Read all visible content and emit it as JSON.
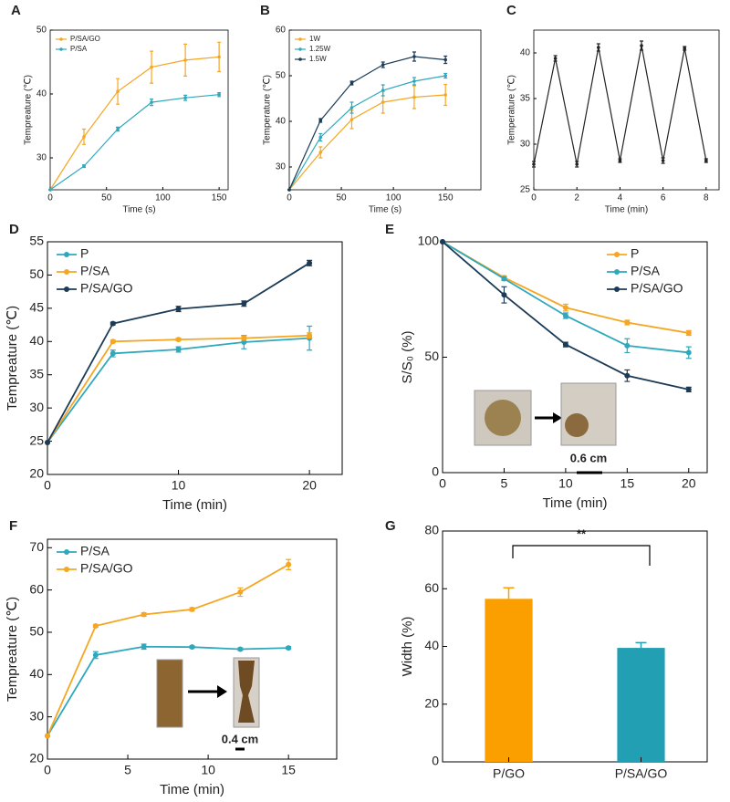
{
  "chart_data": [
    {
      "label": "A",
      "type": "line",
      "xlabel": "Time (s)",
      "ylabel": "Tempreature (℃)",
      "xlim": [
        0,
        158
      ],
      "ylim": [
        25,
        50
      ],
      "xticks": [
        0,
        50,
        100,
        150
      ],
      "yticks": [
        30,
        40,
        50
      ],
      "legend": "upper left",
      "x": [
        0,
        30,
        60,
        90,
        120,
        150
      ],
      "series": [
        {
          "name": "P/SA/GO",
          "color": "#f5a623",
          "values": [
            25,
            33.3,
            40.4,
            44.2,
            45.3,
            45.8
          ],
          "errors": [
            0,
            1.2,
            2,
            2.5,
            2.5,
            2.3
          ]
        },
        {
          "name": "P/SA",
          "color": "#2fa8bd",
          "values": [
            25,
            28.7,
            34.5,
            38.7,
            39.4,
            39.9
          ],
          "errors": [
            0,
            0.2,
            0.3,
            0.5,
            0.4,
            0.3
          ]
        }
      ]
    },
    {
      "label": "B",
      "type": "line",
      "xlabel": "Time (s)",
      "ylabel": "Temperature (℃)",
      "xlim": [
        0,
        184
      ],
      "ylim": [
        25,
        60
      ],
      "xticks": [
        0,
        50,
        100,
        150
      ],
      "yticks": [
        30,
        40,
        50,
        60
      ],
      "legend": "upper left",
      "x": [
        0,
        30,
        60,
        90,
        120,
        150
      ],
      "series": [
        {
          "name": "1W",
          "color": "#f5a623",
          "values": [
            25,
            33.2,
            40.4,
            44.2,
            45.3,
            45.8
          ],
          "errors": [
            0,
            1.2,
            2,
            2.4,
            2.5,
            2.3
          ]
        },
        {
          "name": "1.25W",
          "color": "#2fa8bd",
          "values": [
            25,
            36.5,
            43,
            46.8,
            48.8,
            50
          ],
          "errors": [
            0,
            0.8,
            1.2,
            1.2,
            0.8,
            0.5
          ]
        },
        {
          "name": "1.5W",
          "color": "#1b3b57",
          "values": [
            25,
            40.2,
            48.4,
            52.4,
            54.2,
            53.5
          ],
          "errors": [
            0,
            0.4,
            0.4,
            0.6,
            1,
            0.8
          ]
        }
      ]
    },
    {
      "label": "C",
      "type": "line",
      "xlabel": "Time (min)",
      "ylabel": "Temperature (℃)",
      "xlim": [
        0,
        8.6
      ],
      "ylim": [
        25,
        42.5
      ],
      "xticks": [
        0,
        2,
        4,
        6,
        8
      ],
      "yticks": [
        25,
        30,
        35,
        40
      ],
      "x": [
        0,
        1,
        2,
        3,
        4,
        5,
        6,
        7,
        8
      ],
      "series": [
        {
          "color": "#222222",
          "values": [
            27.8,
            39.4,
            27.8,
            40.6,
            28.2,
            40.8,
            28.2,
            40.5,
            28.2
          ],
          "errors": [
            0.3,
            0.3,
            0.3,
            0.4,
            0.2,
            0.5,
            0.3,
            0.2,
            0.2
          ]
        }
      ]
    },
    {
      "label": "D",
      "type": "line",
      "xlabel": "Time (min)",
      "ylabel": "Tempreature (℃)",
      "xlim": [
        0,
        22.5
      ],
      "ylim": [
        20,
        55
      ],
      "xticks": [
        0,
        10,
        20
      ],
      "yticks": [
        20,
        25,
        30,
        35,
        40,
        45,
        50,
        55
      ],
      "legend": "upper left",
      "x": [
        0,
        5,
        10,
        15,
        20
      ],
      "series": [
        {
          "name": "P",
          "color": "#2fa8bd",
          "values": [
            24.8,
            38.2,
            38.8,
            39.9,
            40.5
          ],
          "errors": [
            0,
            0.5,
            0.4,
            1,
            1.8
          ]
        },
        {
          "name": "P/SA",
          "color": "#f5a623",
          "values": [
            24.8,
            40,
            40.3,
            40.5,
            40.9
          ],
          "errors": [
            0,
            0.2,
            0.2,
            0.3,
            0.4
          ]
        },
        {
          "name": "P/SA/GO",
          "color": "#1b3b57",
          "values": [
            24.8,
            42.7,
            44.9,
            45.7,
            51.8
          ],
          "errors": [
            0,
            0.2,
            0.4,
            0.4,
            0.4
          ]
        }
      ]
    },
    {
      "label": "E",
      "type": "line",
      "xlabel": "Time (min)",
      "ylabel": "S/S₀ (%)",
      "xlim": [
        0,
        21.5
      ],
      "ylim": [
        0,
        100
      ],
      "xticks": [
        0,
        5,
        10,
        15,
        20
      ],
      "yticks": [
        0,
        50,
        100
      ],
      "legend": "upper right",
      "x": [
        0,
        5,
        10,
        15,
        20
      ],
      "annotations": [
        "0.6 cm"
      ],
      "series": [
        {
          "name": "P",
          "color": "#f5a623",
          "values": [
            100,
            84.5,
            71.5,
            65,
            60.5
          ],
          "errors": [
            0,
            0.8,
            1.5,
            1,
            1
          ]
        },
        {
          "name": "P/SA",
          "color": "#2fa8bd",
          "values": [
            100,
            84,
            68,
            55,
            52
          ],
          "errors": [
            0,
            0.8,
            1.2,
            3,
            2.5
          ]
        },
        {
          "name": "P/SA/GO",
          "color": "#1b3b57",
          "values": [
            100,
            77,
            55.5,
            42,
            36
          ],
          "errors": [
            0,
            3.5,
            1,
            2.5,
            1
          ]
        }
      ]
    },
    {
      "label": "F",
      "type": "line",
      "xlabel": "Time (min)",
      "ylabel": "Tempreature (℃)",
      "xlim": [
        0,
        18
      ],
      "ylim": [
        20,
        72
      ],
      "xticks": [
        0,
        5,
        10,
        15
      ],
      "yticks": [
        20,
        30,
        40,
        50,
        60,
        70
      ],
      "legend": "upper left",
      "x": [
        0,
        3,
        6,
        9,
        12,
        15
      ],
      "annotations": [
        "0.4 cm"
      ],
      "series": [
        {
          "name": "P/SA",
          "color": "#2fa8bd",
          "values": [
            25.5,
            44.6,
            46.6,
            46.5,
            46,
            46.3
          ],
          "errors": [
            0,
            0.8,
            0.6,
            0.3,
            0.3,
            0.3
          ]
        },
        {
          "name": "P/SA/GO",
          "color": "#f5a623",
          "values": [
            25.5,
            51.5,
            54.2,
            55.4,
            59.5,
            66
          ],
          "errors": [
            0,
            0.3,
            0.4,
            0.4,
            1,
            1.2
          ]
        }
      ]
    },
    {
      "label": "G",
      "type": "bar",
      "ylabel": "Width (%)",
      "ylim": [
        0,
        80
      ],
      "yticks": [
        0,
        20,
        40,
        60,
        80
      ],
      "annotations": [
        "**"
      ],
      "categories": [
        "P/GO",
        "P/SA/GO"
      ],
      "values": [
        56.5,
        39.5
      ],
      "errors": [
        3.8,
        1.8
      ],
      "colors": [
        "#fb9f00",
        "#239fb4"
      ]
    }
  ]
}
